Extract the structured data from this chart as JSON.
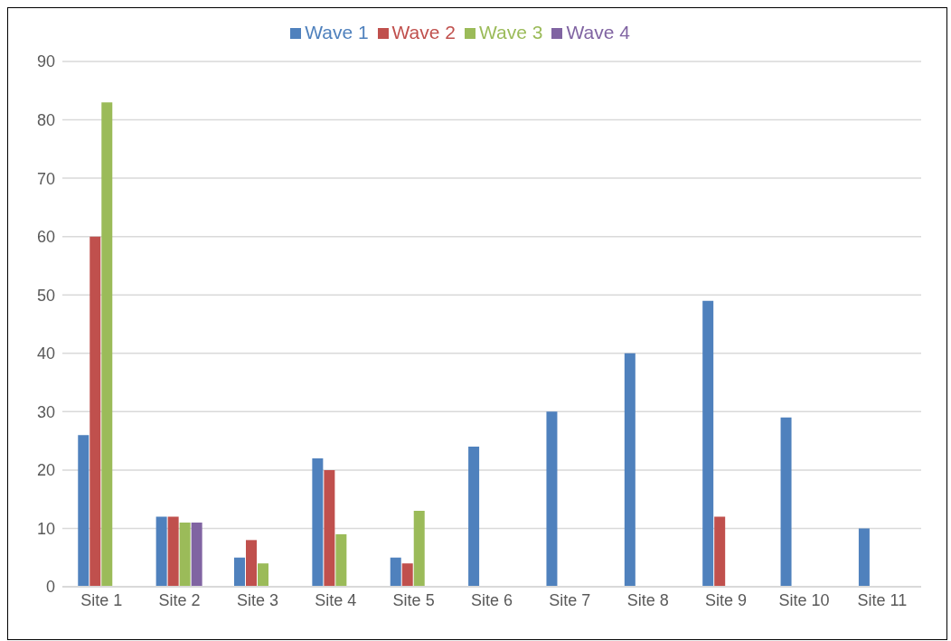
{
  "chart_data": {
    "type": "bar",
    "categories": [
      "Site 1",
      "Site 2",
      "Site 3",
      "Site 4",
      "Site 5",
      "Site 6",
      "Site 7",
      "Site 8",
      "Site 9",
      "Site 10",
      "Site 11"
    ],
    "series": [
      {
        "name": "Wave 1",
        "color": "#4f81bd",
        "values": [
          26,
          12,
          5,
          22,
          5,
          24,
          30,
          40,
          49,
          29,
          10
        ]
      },
      {
        "name": "Wave 2",
        "color": "#c0504d",
        "values": [
          60,
          12,
          8,
          20,
          4,
          null,
          null,
          null,
          12,
          null,
          null
        ]
      },
      {
        "name": "Wave 3",
        "color": "#9bbb59",
        "values": [
          83,
          11,
          4,
          9,
          13,
          null,
          null,
          null,
          null,
          null,
          null
        ]
      },
      {
        "name": "Wave 4",
        "color": "#8064a2",
        "values": [
          null,
          11,
          null,
          null,
          null,
          null,
          null,
          null,
          null,
          null,
          null
        ]
      }
    ],
    "ylim": [
      0,
      90
    ],
    "yticks": [
      0,
      10,
      20,
      30,
      40,
      50,
      60,
      70,
      80,
      90
    ],
    "grid": "y",
    "legend": "top"
  }
}
